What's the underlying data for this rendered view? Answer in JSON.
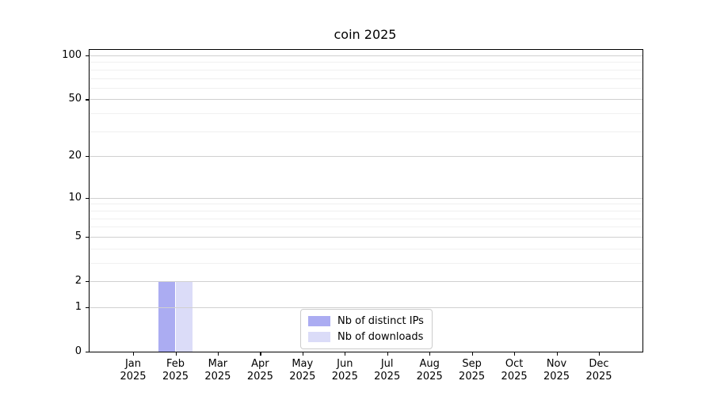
{
  "title": "coin 2025",
  "colors": {
    "distinct_ips_bar": "#abacf2",
    "downloads_bar": "#dbdcf8",
    "grid_major": "#d0d0d0",
    "grid_minor": "#f0f0f0",
    "axis": "#000000",
    "legend_border": "#cccccc",
    "background": "#ffffff"
  },
  "chart_data": {
    "type": "bar",
    "title": "coin 2025",
    "categories": [
      "Jan",
      "Feb",
      "Mar",
      "Apr",
      "May",
      "Jun",
      "Jul",
      "Aug",
      "Sep",
      "Oct",
      "Nov",
      "Dec"
    ],
    "x_year_label": "2025",
    "series": [
      {
        "name": "Nb of distinct IPs",
        "color": "#abacf2",
        "values": [
          0,
          2,
          0,
          0,
          0,
          0,
          0,
          0,
          0,
          0,
          0,
          0
        ]
      },
      {
        "name": "Nb of downloads",
        "color": "#dbdcf8",
        "values": [
          0,
          2,
          0,
          0,
          0,
          0,
          0,
          0,
          0,
          0,
          0,
          0
        ]
      }
    ],
    "y_ticks": [
      0,
      1,
      2,
      5,
      10,
      20,
      50,
      100
    ],
    "y_minor_gridlines": [
      3,
      4,
      6,
      7,
      8,
      9,
      30,
      40,
      60,
      70,
      80,
      90
    ],
    "scale": "log1p",
    "ylim": [
      0,
      100
    ],
    "xlabel": "",
    "ylabel": "",
    "grid": true,
    "legend_position": "lower center"
  }
}
